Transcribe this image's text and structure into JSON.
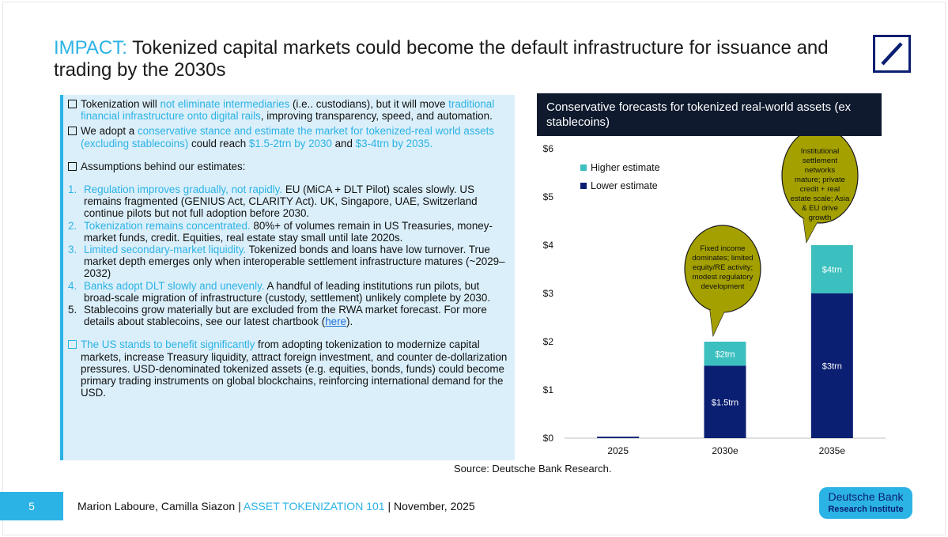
{
  "title": {
    "accent": "IMPACT:",
    "rest": " Tokenized capital markets could become the default infrastructure for issuance and trading by the 2030s"
  },
  "left": {
    "p1": {
      "a": "Tokenization will ",
      "b": "not eliminate intermediaries",
      "c": " (i.e.. custodians), but it will move ",
      "d": "traditional financial infrastructure onto digital rails",
      "e": ", improving transparency, speed, and automation."
    },
    "p2": {
      "a": "We adopt a ",
      "b": "conservative stance and estimate the market for tokenized-real world assets (excluding stablecoins)",
      "c": " could reach ",
      "d": "$1.5-2trn by 2030",
      "e": " and ",
      "f": "$3-4trn by 2035."
    },
    "assumptions_heading": "Assumptions behind our estimates:",
    "items": [
      {
        "n": "1.",
        "hl": "Regulation improves gradually, not rapidly.",
        "text": " EU (MiCA + DLT Pilot) scales slowly. US remains fragmented (GENIUS Act, CLARITY Act). UK, Singapore, UAE, Switzerland continue pilots but not full adoption before 2030."
      },
      {
        "n": "2.",
        "hl": "Tokenization remains concentrated.",
        "text": " 80%+ of volumes remain in US Treasuries, money-market funds, credit. Equities, real estate stay small until late 2020s."
      },
      {
        "n": "3.",
        "hl": "Limited secondary-market liquidity.",
        "text": " Tokenized bonds and loans have low turnover. True market depth emerges only when interoperable settlement infrastructure matures (~2029–2032)"
      },
      {
        "n": "4.",
        "hl": "Banks adopt DLT slowly and unevenly.",
        "text": " A handful of leading institutions run pilots, but broad-scale migration of infrastructure (custody, settlement) unlikely complete by 2030."
      }
    ],
    "item5": {
      "n": "5.",
      "text": "Stablecoins grow materially but are excluded from the RWA market forecast. For more details about stablecoins, see our latest chartbook (",
      "link": "here",
      "end": ")."
    },
    "p3": {
      "a": "The US stands to benefit significantly",
      "b": " from adopting tokenization to modernize capital markets, increase Treasury liquidity, attract foreign investment, and counter de-dollarization pressures. USD-denominated tokenized assets (e.g. equities, bonds, funds) could become primary trading instruments on global blockchains, reinforcing international demand for the USD."
    }
  },
  "chart_header": "Conservative forecasts for tokenized real-world assets (ex stablecoins)",
  "chart_data": {
    "type": "bar",
    "stacked": true,
    "title": "Conservative forecasts for tokenized real-world assets (ex stablecoins)",
    "categories": [
      "2025",
      "2030e",
      "2035e"
    ],
    "series": [
      {
        "name": "Lower estimate",
        "color": "#0b1f72",
        "values": [
          0.03,
          1.5,
          3.0
        ],
        "labels": [
          "",
          "$1.5trn",
          "$3trn"
        ]
      },
      {
        "name": "Higher estimate",
        "color": "#3cbfbf",
        "values": [
          0,
          0.5,
          1.0
        ],
        "labels": [
          "",
          "$2trn",
          "$4trn"
        ]
      }
    ],
    "ylim": [
      0,
      6
    ],
    "yticks": [
      "$0",
      "$1",
      "$2",
      "$3",
      "$4",
      "$5",
      "$6"
    ],
    "legend": [
      "Higher estimate",
      "Lower estimate"
    ],
    "legend_position": "top-left",
    "annotations": [
      {
        "target": "2030e",
        "text": [
          "Fixed income",
          "dominates; limited",
          "equity/RE activity;",
          "modest regulatory",
          "development"
        ]
      },
      {
        "target": "2035e",
        "text": [
          "Institutional",
          "settlement",
          "networks",
          "mature; private",
          "credit + real",
          "estate scale; Asia",
          "& EU drive",
          "growth"
        ]
      }
    ]
  },
  "source": "Source: Deutsche Bank Research.",
  "footer": {
    "page": "5",
    "authors": "Marion Laboure, Camilla Siazon | ",
    "series": "ASSET TOKENIZATION 101",
    "date": " |  November, 2025"
  },
  "badge": {
    "line1": "Deutsche Bank",
    "line2": "Research Institute"
  }
}
